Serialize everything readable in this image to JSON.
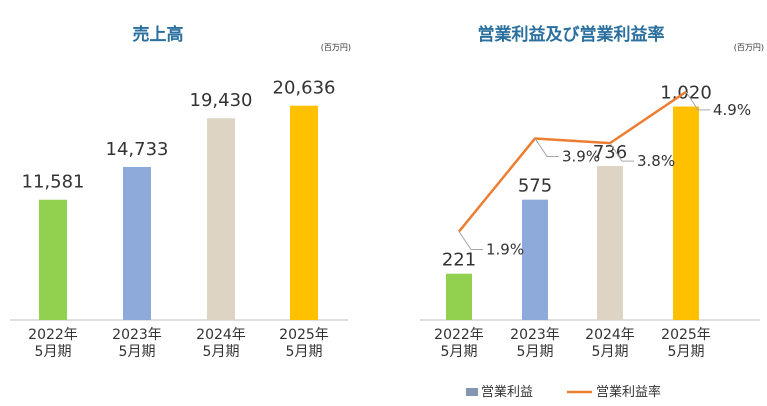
{
  "units": "(百万円)",
  "chart_data": [
    {
      "type": "bar",
      "title": "売上高",
      "categories": [
        [
          "2022年",
          "5月期"
        ],
        [
          "2023年",
          "5月期"
        ],
        [
          "2024年",
          "5月期"
        ],
        [
          "2025年",
          "5月期"
        ]
      ],
      "values": [
        11581,
        14733,
        19430,
        20636
      ],
      "value_labels": [
        "11,581",
        "14,733",
        "19,430",
        "20,636"
      ],
      "bar_colors": [
        "#92d050",
        "#8eaadb",
        "#ddd4c4",
        "#ffc000"
      ],
      "ylim": [
        0,
        26000
      ],
      "legend": "none"
    },
    {
      "type": "bar",
      "title": "営業利益及び営業利益率",
      "categories": [
        [
          "2022年",
          "5月期"
        ],
        [
          "2023年",
          "5月期"
        ],
        [
          "2024年",
          "5月期"
        ],
        [
          "2025年",
          "5月期"
        ]
      ],
      "series": [
        {
          "name": "営業利益",
          "type": "bar",
          "values": [
            221,
            575,
            736,
            1020
          ],
          "value_labels": [
            "221",
            "575",
            "736",
            "1,020"
          ],
          "color": "#8eaadb"
        },
        {
          "name": "営業利益率",
          "type": "line",
          "values": [
            1.9,
            3.9,
            3.8,
            4.9
          ],
          "value_labels": [
            "1.9%",
            "3.9%",
            "3.8%",
            "4.9%"
          ],
          "color": "#ed7d31"
        }
      ],
      "bar_colors": [
        "#92d050",
        "#8eaadb",
        "#ddd4c4",
        "#ffc000"
      ],
      "legend_swatch_color": "#8497b0",
      "ylim": [
        0,
        1290
      ],
      "ylim_secondary": [
        0,
        5.8
      ],
      "legend": "bottom"
    }
  ]
}
